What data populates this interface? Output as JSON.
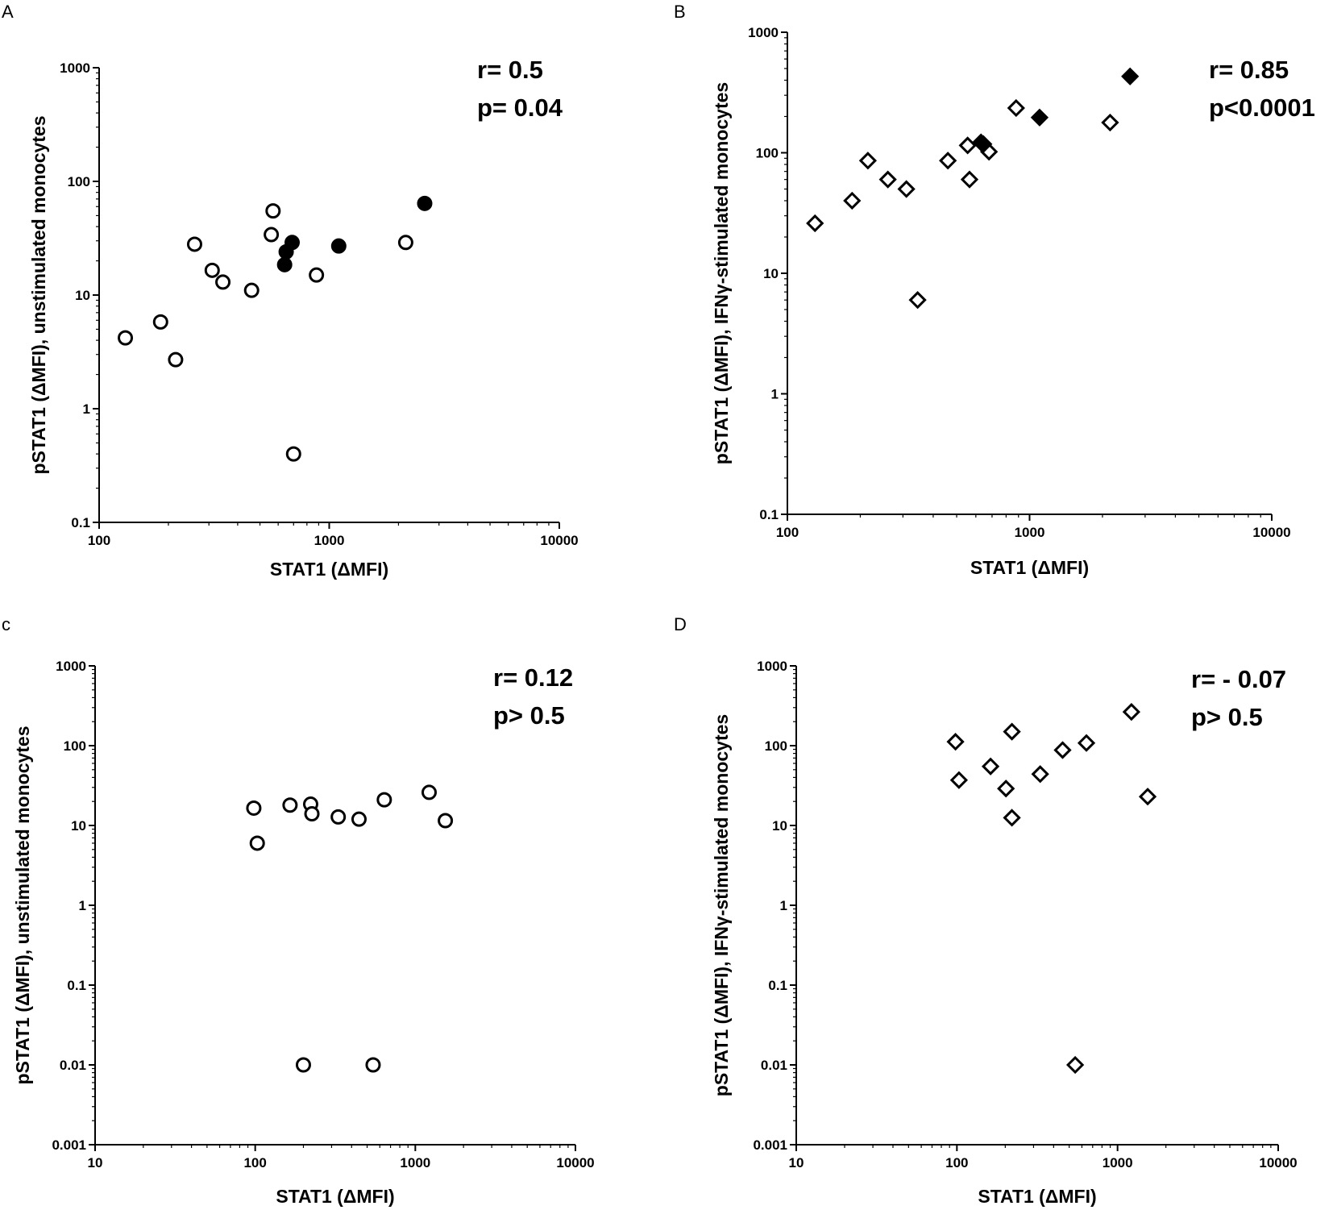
{
  "figure": {
    "panels": [
      {
        "letter": "A",
        "stat_r": "r= 0.5",
        "stat_p": "p= 0.04"
      },
      {
        "letter": "B",
        "stat_r": "r= 0.85",
        "stat_p": "p<0.0001"
      },
      {
        "letter": "c",
        "stat_r": "r= 0.12",
        "stat_p": "p> 0.5"
      },
      {
        "letter": "D",
        "stat_r": "r= - 0.07",
        "stat_p": "p> 0.5"
      }
    ]
  },
  "chart_data": [
    {
      "type": "scatter",
      "panel": "A",
      "xlabel": "STAT1 (ΔMFI)",
      "ylabel": "pSTAT1 (ΔMFI), unstimulated monocytes",
      "xscale": "log",
      "yscale": "log",
      "xlim": [
        100,
        10000
      ],
      "ylim": [
        0.1,
        1000
      ],
      "xticks": [
        "100",
        "1000",
        "10000"
      ],
      "yticks": [
        "0.1",
        "1",
        "10",
        "100",
        "1000"
      ],
      "marker": "circle",
      "series": [
        {
          "name": "open",
          "filled": false,
          "points": [
            [
              130,
              4.2
            ],
            [
              185,
              5.8
            ],
            [
              215,
              2.7
            ],
            [
              260,
              28
            ],
            [
              310,
              16.5
            ],
            [
              345,
              13
            ],
            [
              460,
              11
            ],
            [
              570,
              55
            ],
            [
              560,
              34
            ],
            [
              700,
              0.4
            ],
            [
              880,
              15
            ],
            [
              2150,
              29
            ]
          ]
        },
        {
          "name": "filled",
          "filled": true,
          "points": [
            [
              640,
              18.5
            ],
            [
              650,
              24
            ],
            [
              690,
              29
            ],
            [
              1100,
              27
            ],
            [
              2600,
              64
            ]
          ]
        }
      ]
    },
    {
      "type": "scatter",
      "panel": "B",
      "xlabel": "STAT1 (ΔMFI)",
      "ylabel": "pSTAT1 (ΔMFI), IFNγ-stimulated monocytes",
      "xscale": "log",
      "yscale": "log",
      "xlim": [
        100,
        10000
      ],
      "ylim": [
        0.1,
        1000
      ],
      "xticks": [
        "100",
        "1000",
        "10000"
      ],
      "yticks": [
        "0.1",
        "1",
        "10",
        "100",
        "1000"
      ],
      "marker": "diamond",
      "series": [
        {
          "name": "open",
          "filled": false,
          "points": [
            [
              130,
              26
            ],
            [
              185,
              40
            ],
            [
              215,
              86
            ],
            [
              260,
              60
            ],
            [
              310,
              50
            ],
            [
              345,
              6
            ],
            [
              460,
              86
            ],
            [
              555,
              115
            ],
            [
              565,
              60
            ],
            [
              680,
              102
            ],
            [
              880,
              235
            ],
            [
              2150,
              178
            ]
          ]
        },
        {
          "name": "filled",
          "filled": true,
          "points": [
            [
              630,
              122
            ],
            [
              645,
              118
            ],
            [
              1100,
              196
            ],
            [
              2600,
              430
            ]
          ]
        }
      ]
    },
    {
      "type": "scatter",
      "panel": "c",
      "xlabel": "STAT1 (ΔMFI)",
      "ylabel": "pSTAT1 (ΔMFI), unstimulated monocytes",
      "xscale": "log",
      "yscale": "log",
      "xlim": [
        10,
        10000
      ],
      "ylim": [
        0.001,
        1000
      ],
      "xticks": [
        "10",
        "100",
        "1000",
        "10000"
      ],
      "yticks": [
        "0.001",
        "0.01",
        "0.1",
        "1",
        "10",
        "100",
        "1000"
      ],
      "marker": "circle",
      "series": [
        {
          "name": "open",
          "filled": false,
          "points": [
            [
              98,
              16.5
            ],
            [
              103,
              6
            ],
            [
              165,
              18
            ],
            [
              222,
              18.5
            ],
            [
              226,
              14
            ],
            [
              330,
              12.8
            ],
            [
              445,
              12
            ],
            [
              640,
              21
            ],
            [
              1220,
              26
            ],
            [
              1540,
              11.5
            ],
            [
              200,
              0.01
            ],
            [
              545,
              0.01
            ]
          ]
        }
      ]
    },
    {
      "type": "scatter",
      "panel": "D",
      "xlabel": "STAT1 (ΔMFI)",
      "ylabel": "pSTAT1 (ΔMFI), IFNγ-stimulated monocytes",
      "xscale": "log",
      "yscale": "log",
      "xlim": [
        10,
        10000
      ],
      "ylim": [
        0.001,
        1000
      ],
      "xticks": [
        "10",
        "100",
        "1000",
        "10000"
      ],
      "yticks": [
        "0.001",
        "0.01",
        "0.1",
        "1",
        "10",
        "100",
        "1000"
      ],
      "marker": "diamond",
      "series": [
        {
          "name": "open",
          "filled": false,
          "points": [
            [
              98,
              112
            ],
            [
              103,
              37
            ],
            [
              162,
              55
            ],
            [
              202,
              29
            ],
            [
              220,
              12.5
            ],
            [
              220,
              150
            ],
            [
              330,
              44
            ],
            [
              455,
              88
            ],
            [
              640,
              108
            ],
            [
              1220,
              265
            ],
            [
              1540,
              23
            ],
            [
              545,
              0.01
            ]
          ]
        }
      ]
    }
  ]
}
